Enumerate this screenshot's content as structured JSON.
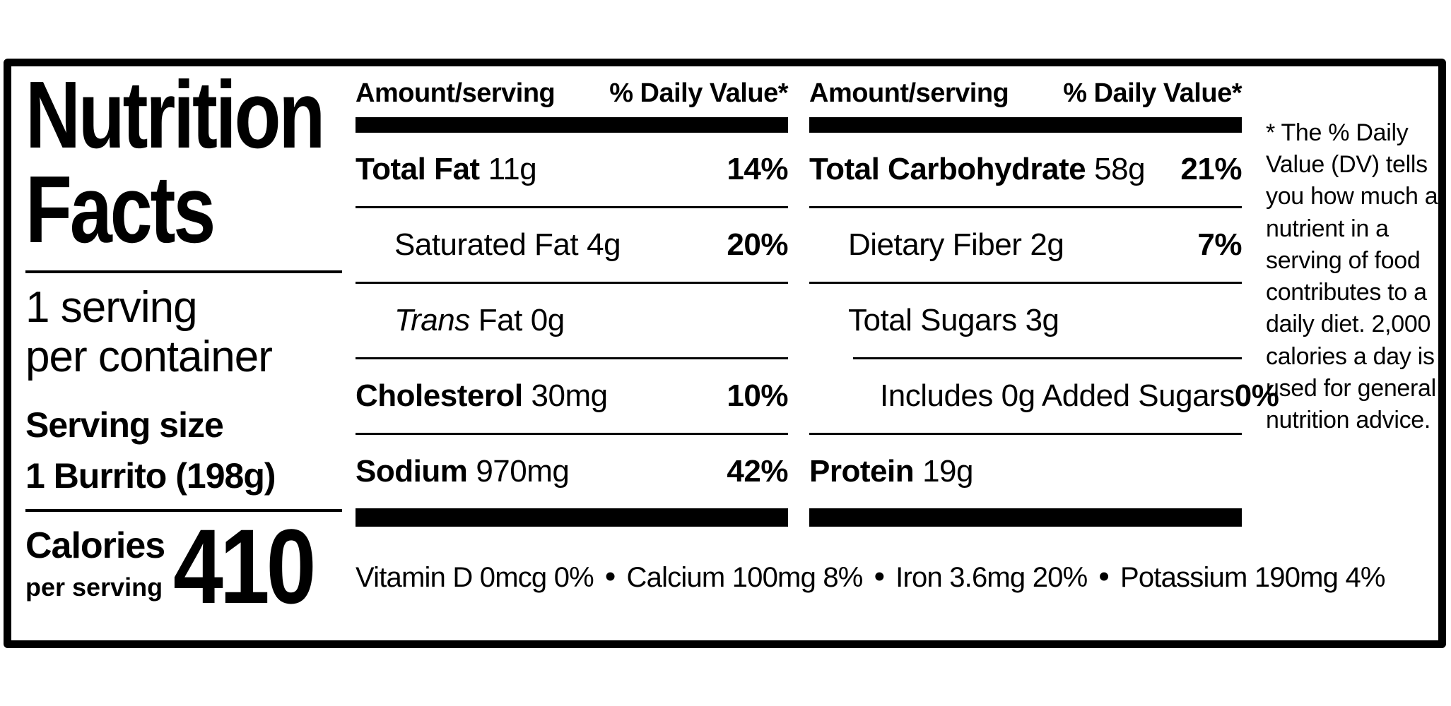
{
  "label": {
    "title_line1": "Nutrition",
    "title_line2": "Facts",
    "servings_line1": "1 serving",
    "servings_line2": "per container",
    "serving_size_label": "Serving size",
    "serving_size_value": "1 Burrito (198g)",
    "calories_label": "Calories",
    "calories_sublabel": "per serving",
    "calories_value": "410"
  },
  "columns": [
    {
      "header_amount": "Amount/serving",
      "header_dv": "% Daily Value*",
      "rows": [
        {
          "name": "Total Fat",
          "amount": "11g",
          "dv": "14%"
        },
        {
          "name": "Saturated Fat",
          "amount": "4g",
          "dv": "20%"
        },
        {
          "name_italic": "Trans",
          "name": "Fat",
          "amount": "0g",
          "dv": ""
        },
        {
          "name": "Cholesterol",
          "amount": "30mg",
          "dv": "10%"
        },
        {
          "name": "Sodium",
          "amount": "970mg",
          "dv": "42%"
        }
      ]
    },
    {
      "header_amount": "Amount/serving",
      "header_dv": "% Daily Value*",
      "rows": [
        {
          "name": "Total Carbohydrate",
          "amount": "58g",
          "dv": "21%"
        },
        {
          "name": "Dietary Fiber",
          "amount": "2g",
          "dv": "7%"
        },
        {
          "name": "Total Sugars",
          "amount": "3g",
          "dv": ""
        },
        {
          "name": "Includes 0g Added Sugars",
          "amount": "",
          "dv": "0%"
        },
        {
          "name": "Protein",
          "amount": "19g",
          "dv": ""
        }
      ]
    }
  ],
  "micronutrients": {
    "bullet": "•",
    "items": [
      "Vitamin D 0mcg 0%",
      "Calcium 100mg 8%",
      "Iron 3.6mg 20%",
      "Potassium 190mg 4%"
    ]
  },
  "footnote": "* The % Daily Value (DV) tells you how much a nutrient in a serving of food contributes to a daily diet. 2,000 calories a day is used for general nutrition advice.",
  "colors": {
    "ink": "#000000",
    "paper": "#ffffff"
  }
}
